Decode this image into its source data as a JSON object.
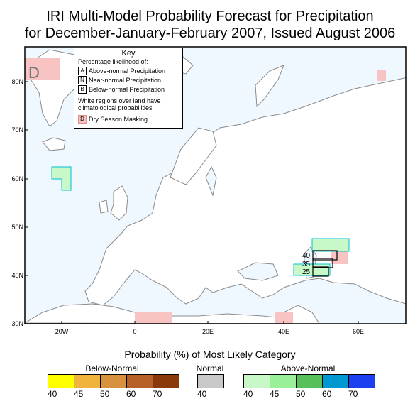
{
  "title_line1": "IRI Multi-Model Probability Forecast for Precipitation",
  "title_line2": "for December-January-February 2007, Issued August 2006",
  "map": {
    "lat_labels": [
      "80N",
      "70N",
      "60N",
      "50N",
      "40N",
      "30N"
    ],
    "lon_labels": [
      "20W",
      "0",
      "20E",
      "40E",
      "60E"
    ],
    "dry_mask_marker": "D",
    "inset_box_labels": [
      "40",
      "35",
      "25"
    ]
  },
  "key": {
    "title": "Key",
    "subtitle": "Percentage likelihood of:",
    "items": [
      {
        "letter": "A",
        "label": "Above-normal Precipitation"
      },
      {
        "letter": "N",
        "label": "Near-normal Precipitation"
      },
      {
        "letter": "B",
        "label": "Below-normal Precipitation"
      }
    ],
    "note": "White regions over land have climatological probabilities",
    "dry": {
      "letter": "D",
      "label": "Dry Season Masking"
    }
  },
  "legend": {
    "title": "Probability (%) of Most Likely Category",
    "below": {
      "label": "Below-Normal",
      "ticks": [
        "40",
        "45",
        "50",
        "60",
        "70"
      ],
      "colors": [
        "#ffff00",
        "#f0b43c",
        "#d8913c",
        "#b8602a",
        "#8a3a0a"
      ]
    },
    "normal": {
      "label": "Normal",
      "ticks": [
        "40"
      ],
      "colors": [
        "#c8c8c8"
      ]
    },
    "above": {
      "label": "Above-Normal",
      "ticks": [
        "40",
        "45",
        "50",
        "60",
        "70"
      ],
      "colors": [
        "#c8f8c8",
        "#98f098",
        "#58c058",
        "#0098d0",
        "#1c40f0"
      ]
    }
  },
  "colors": {
    "ocean": "#f0f8ff",
    "dry_mask": "#f7c3c3",
    "above_light": "#c8f8c8",
    "coast": "#888888"
  }
}
